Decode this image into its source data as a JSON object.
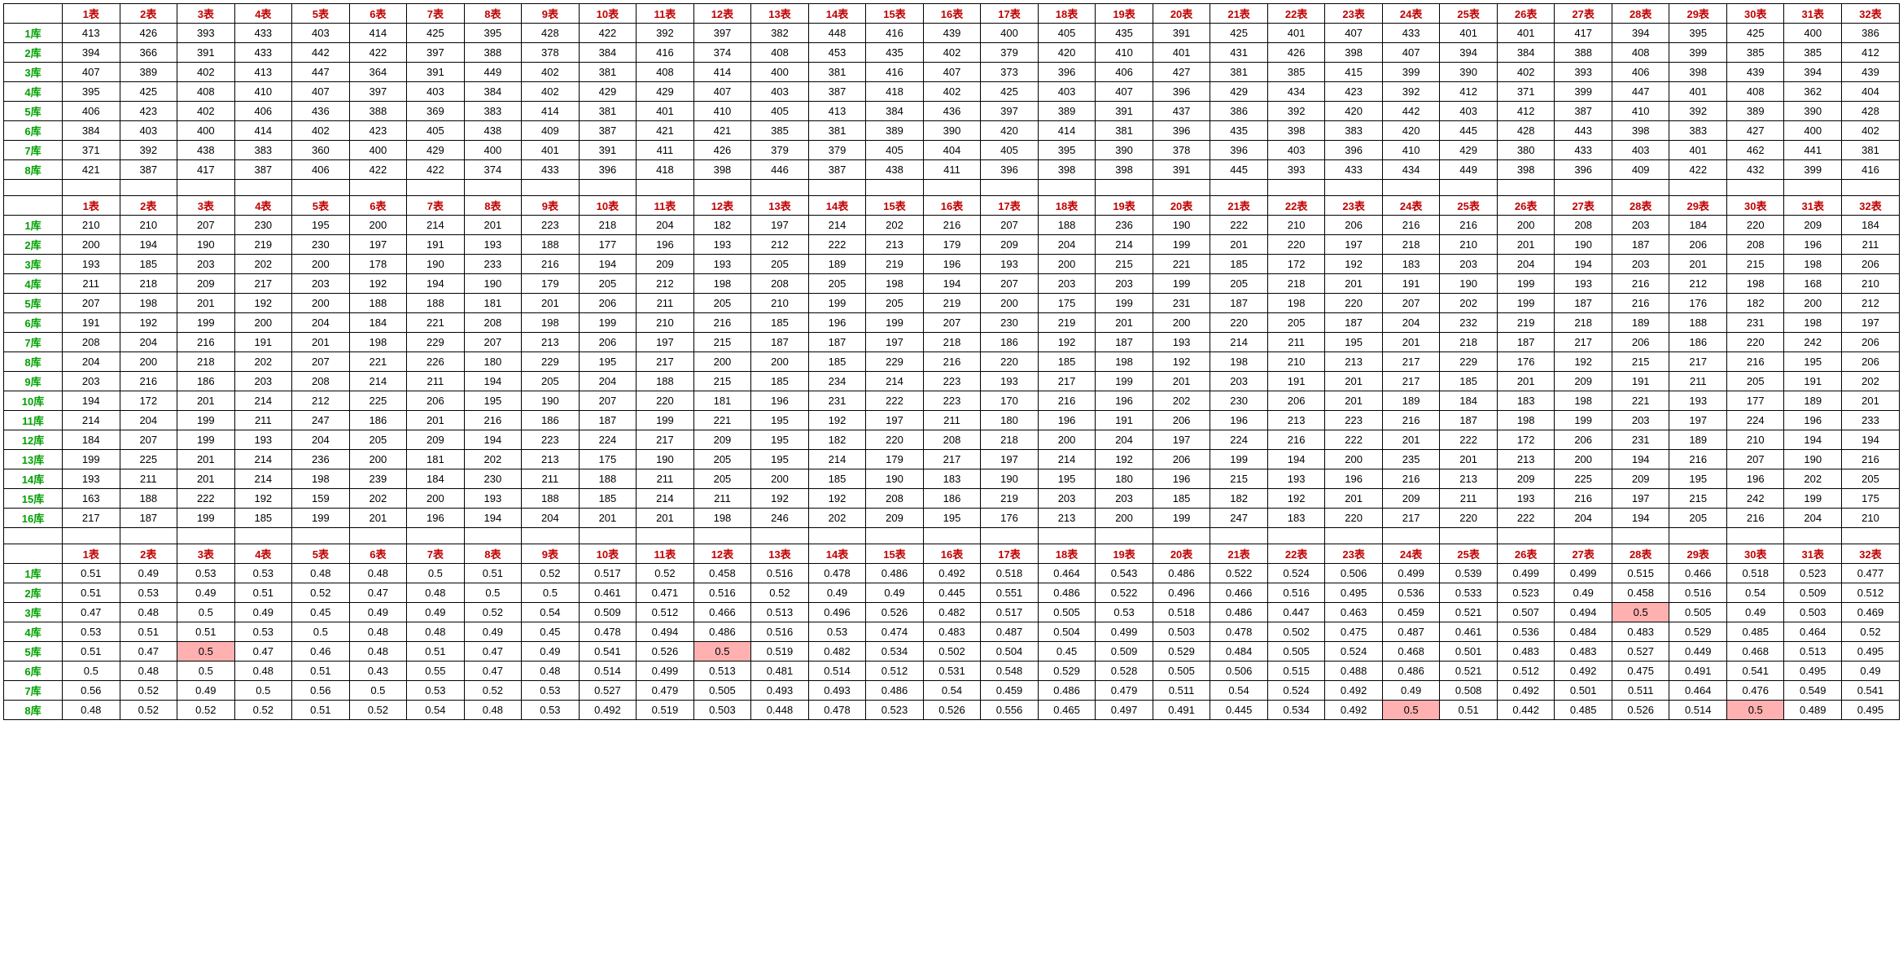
{
  "columns": [
    "1表",
    "2表",
    "3表",
    "4表",
    "5表",
    "6表",
    "7表",
    "8表",
    "9表",
    "10表",
    "11表",
    "12表",
    "13表",
    "14表",
    "15表",
    "16表",
    "17表",
    "18表",
    "19表",
    "20表",
    "21表",
    "22表",
    "23表",
    "24表",
    "25表",
    "26表",
    "27表",
    "28表",
    "29表",
    "30表",
    "31表",
    "32表"
  ],
  "colors": {
    "header": "#c00000",
    "row_header": "#00a000",
    "highlight_bg": "#ffb0b0",
    "border": "#000000"
  },
  "tables": [
    {
      "row_labels": [
        "1库",
        "2库",
        "3库",
        "4库",
        "5库",
        "6库",
        "7库",
        "8库"
      ],
      "rows": [
        [
          413,
          426,
          393,
          433,
          403,
          414,
          425,
          395,
          428,
          422,
          392,
          397,
          382,
          448,
          416,
          439,
          400,
          405,
          435,
          391,
          425,
          401,
          407,
          433,
          401,
          401,
          417,
          394,
          395,
          425,
          400,
          386
        ],
        [
          394,
          366,
          391,
          433,
          442,
          422,
          397,
          388,
          378,
          384,
          416,
          374,
          408,
          453,
          435,
          402,
          379,
          420,
          410,
          401,
          431,
          426,
          398,
          407,
          394,
          384,
          388,
          408,
          399,
          385,
          385,
          412
        ],
        [
          407,
          389,
          402,
          413,
          447,
          364,
          391,
          449,
          402,
          381,
          408,
          414,
          400,
          381,
          416,
          407,
          373,
          396,
          406,
          427,
          381,
          385,
          415,
          399,
          390,
          402,
          393,
          406,
          398,
          439,
          394,
          439
        ],
        [
          395,
          425,
          408,
          410,
          407,
          397,
          403,
          384,
          402,
          429,
          429,
          407,
          403,
          387,
          418,
          402,
          425,
          403,
          407,
          396,
          429,
          434,
          423,
          392,
          412,
          371,
          399,
          447,
          401,
          408,
          362,
          404
        ],
        [
          406,
          423,
          402,
          406,
          436,
          388,
          369,
          383,
          414,
          381,
          401,
          410,
          405,
          413,
          384,
          436,
          397,
          389,
          391,
          437,
          386,
          392,
          420,
          442,
          403,
          412,
          387,
          410,
          392,
          389,
          390,
          428
        ],
        [
          384,
          403,
          400,
          414,
          402,
          423,
          405,
          438,
          409,
          387,
          421,
          421,
          385,
          381,
          389,
          390,
          420,
          414,
          381,
          396,
          435,
          398,
          383,
          420,
          445,
          428,
          443,
          398,
          383,
          427,
          400,
          402
        ],
        [
          371,
          392,
          438,
          383,
          360,
          400,
          429,
          400,
          401,
          391,
          411,
          426,
          379,
          379,
          405,
          404,
          405,
          395,
          390,
          378,
          396,
          403,
          396,
          410,
          429,
          380,
          433,
          403,
          401,
          462,
          441,
          381
        ],
        [
          421,
          387,
          417,
          387,
          406,
          422,
          422,
          374,
          433,
          396,
          418,
          398,
          446,
          387,
          438,
          411,
          396,
          398,
          398,
          391,
          445,
          393,
          433,
          434,
          449,
          398,
          396,
          409,
          422,
          432,
          399,
          416
        ]
      ],
      "highlights": []
    },
    {
      "row_labels": [
        "1库",
        "2库",
        "3库",
        "4库",
        "5库",
        "6库",
        "7库",
        "8库",
        "9库",
        "10库",
        "11库",
        "12库",
        "13库",
        "14库",
        "15库",
        "16库"
      ],
      "rows": [
        [
          210,
          210,
          207,
          230,
          195,
          200,
          214,
          201,
          223,
          218,
          204,
          182,
          197,
          214,
          202,
          216,
          207,
          188,
          236,
          190,
          222,
          210,
          206,
          216,
          216,
          200,
          208,
          203,
          184,
          220,
          209,
          184
        ],
        [
          200,
          194,
          190,
          219,
          230,
          197,
          191,
          193,
          188,
          177,
          196,
          193,
          212,
          222,
          213,
          179,
          209,
          204,
          214,
          199,
          201,
          220,
          197,
          218,
          210,
          201,
          190,
          187,
          206,
          208,
          196,
          211
        ],
        [
          193,
          185,
          203,
          202,
          200,
          178,
          190,
          233,
          216,
          194,
          209,
          193,
          205,
          189,
          219,
          196,
          193,
          200,
          215,
          221,
          185,
          172,
          192,
          183,
          203,
          204,
          194,
          203,
          201,
          215,
          198,
          206
        ],
        [
          211,
          218,
          209,
          217,
          203,
          192,
          194,
          190,
          179,
          205,
          212,
          198,
          208,
          205,
          198,
          194,
          207,
          203,
          203,
          199,
          205,
          218,
          201,
          191,
          190,
          199,
          193,
          216,
          212,
          198,
          168,
          210
        ],
        [
          207,
          198,
          201,
          192,
          200,
          188,
          188,
          181,
          201,
          206,
          211,
          205,
          210,
          199,
          205,
          219,
          200,
          175,
          199,
          231,
          187,
          198,
          220,
          207,
          202,
          199,
          187,
          216,
          176,
          182,
          200,
          212
        ],
        [
          191,
          192,
          199,
          200,
          204,
          184,
          221,
          208,
          198,
          199,
          210,
          216,
          185,
          196,
          199,
          207,
          230,
          219,
          201,
          200,
          220,
          205,
          187,
          204,
          232,
          219,
          218,
          189,
          188,
          231,
          198,
          197
        ],
        [
          208,
          204,
          216,
          191,
          201,
          198,
          229,
          207,
          213,
          206,
          197,
          215,
          187,
          187,
          197,
          218,
          186,
          192,
          187,
          193,
          214,
          211,
          195,
          201,
          218,
          187,
          217,
          206,
          186,
          220,
          242,
          206
        ],
        [
          204,
          200,
          218,
          202,
          207,
          221,
          226,
          180,
          229,
          195,
          217,
          200,
          200,
          185,
          229,
          216,
          220,
          185,
          198,
          192,
          198,
          210,
          213,
          217,
          229,
          176,
          192,
          215,
          217,
          216,
          195,
          206
        ],
        [
          203,
          216,
          186,
          203,
          208,
          214,
          211,
          194,
          205,
          204,
          188,
          215,
          185,
          234,
          214,
          223,
          193,
          217,
          199,
          201,
          203,
          191,
          201,
          217,
          185,
          201,
          209,
          191,
          211,
          205,
          191,
          202
        ],
        [
          194,
          172,
          201,
          214,
          212,
          225,
          206,
          195,
          190,
          207,
          220,
          181,
          196,
          231,
          222,
          223,
          170,
          216,
          196,
          202,
          230,
          206,
          201,
          189,
          184,
          183,
          198,
          221,
          193,
          177,
          189,
          201
        ],
        [
          214,
          204,
          199,
          211,
          247,
          186,
          201,
          216,
          186,
          187,
          199,
          221,
          195,
          192,
          197,
          211,
          180,
          196,
          191,
          206,
          196,
          213,
          223,
          216,
          187,
          198,
          199,
          203,
          197,
          224,
          196,
          233
        ],
        [
          184,
          207,
          199,
          193,
          204,
          205,
          209,
          194,
          223,
          224,
          217,
          209,
          195,
          182,
          220,
          208,
          218,
          200,
          204,
          197,
          224,
          216,
          222,
          201,
          222,
          172,
          206,
          231,
          189,
          210,
          194,
          194
        ],
        [
          199,
          225,
          201,
          214,
          236,
          200,
          181,
          202,
          213,
          175,
          190,
          205,
          195,
          214,
          179,
          217,
          197,
          214,
          192,
          206,
          199,
          194,
          200,
          235,
          201,
          213,
          200,
          194,
          216,
          207,
          190,
          216
        ],
        [
          193,
          211,
          201,
          214,
          198,
          239,
          184,
          230,
          211,
          188,
          211,
          205,
          200,
          185,
          190,
          183,
          190,
          195,
          180,
          196,
          215,
          193,
          196,
          216,
          213,
          209,
          225,
          209,
          195,
          196,
          202,
          205
        ],
        [
          163,
          188,
          222,
          192,
          159,
          202,
          200,
          193,
          188,
          185,
          214,
          211,
          192,
          192,
          208,
          186,
          219,
          203,
          203,
          185,
          182,
          192,
          201,
          209,
          211,
          193,
          216,
          197,
          215,
          242,
          199,
          175
        ],
        [
          217,
          187,
          199,
          185,
          199,
          201,
          196,
          194,
          204,
          201,
          201,
          198,
          246,
          202,
          209,
          195,
          176,
          213,
          200,
          199,
          247,
          183,
          220,
          217,
          220,
          222,
          204,
          194,
          205,
          216,
          204,
          210
        ]
      ],
      "highlights": []
    },
    {
      "row_labels": [
        "1库",
        "2库",
        "3库",
        "4库",
        "5库",
        "6库",
        "7库",
        "8库"
      ],
      "rows": [
        [
          0.51,
          0.49,
          0.53,
          0.53,
          0.48,
          0.48,
          0.5,
          0.51,
          0.52,
          0.517,
          0.52,
          0.458,
          0.516,
          0.478,
          0.486,
          0.492,
          0.518,
          0.464,
          0.543,
          0.486,
          0.522,
          0.524,
          0.506,
          0.499,
          0.539,
          0.499,
          0.499,
          0.515,
          0.466,
          0.518,
          0.523,
          0.477
        ],
        [
          0.51,
          0.53,
          0.49,
          0.51,
          0.52,
          0.47,
          0.48,
          0.5,
          0.5,
          0.461,
          0.471,
          0.516,
          0.52,
          0.49,
          0.49,
          0.445,
          0.551,
          0.486,
          0.522,
          0.496,
          0.466,
          0.516,
          0.495,
          0.536,
          0.533,
          0.523,
          0.49,
          0.458,
          0.516,
          0.54,
          0.509,
          0.512
        ],
        [
          0.47,
          0.48,
          0.5,
          0.49,
          0.45,
          0.49,
          0.49,
          0.52,
          0.54,
          0.509,
          0.512,
          0.466,
          0.513,
          0.496,
          0.526,
          0.482,
          0.517,
          0.505,
          0.53,
          0.518,
          0.486,
          0.447,
          0.463,
          0.459,
          0.521,
          0.507,
          0.494,
          0.5,
          0.505,
          0.49,
          0.503,
          0.469
        ],
        [
          0.53,
          0.51,
          0.51,
          0.53,
          0.5,
          0.48,
          0.48,
          0.49,
          0.45,
          0.478,
          0.494,
          0.486,
          0.516,
          0.53,
          0.474,
          0.483,
          0.487,
          0.504,
          0.499,
          0.503,
          0.478,
          0.502,
          0.475,
          0.487,
          0.461,
          0.536,
          0.484,
          0.483,
          0.529,
          0.485,
          0.464,
          0.52
        ],
        [
          0.51,
          0.47,
          0.5,
          0.47,
          0.46,
          0.48,
          0.51,
          0.47,
          0.49,
          0.541,
          0.526,
          0.5,
          0.519,
          0.482,
          0.534,
          0.502,
          0.504,
          0.45,
          0.509,
          0.529,
          0.484,
          0.505,
          0.524,
          0.468,
          0.501,
          0.483,
          0.483,
          0.527,
          0.449,
          0.468,
          0.513,
          0.495
        ],
        [
          0.5,
          0.48,
          0.5,
          0.48,
          0.51,
          0.43,
          0.55,
          0.47,
          0.48,
          0.514,
          0.499,
          0.513,
          0.481,
          0.514,
          0.512,
          0.531,
          0.548,
          0.529,
          0.528,
          0.505,
          0.506,
          0.515,
          0.488,
          0.486,
          0.521,
          0.512,
          0.492,
          0.475,
          0.491,
          0.541,
          0.495,
          0.49
        ],
        [
          0.56,
          0.52,
          0.49,
          0.5,
          0.56,
          0.5,
          0.53,
          0.52,
          0.53,
          0.527,
          0.479,
          0.505,
          0.493,
          0.493,
          0.486,
          0.54,
          0.459,
          0.486,
          0.479,
          0.511,
          0.54,
          0.524,
          0.492,
          0.49,
          0.508,
          0.492,
          0.501,
          0.511,
          0.464,
          0.476,
          0.549,
          0.541
        ],
        [
          0.48,
          0.52,
          0.52,
          0.52,
          0.51,
          0.52,
          0.54,
          0.48,
          0.53,
          0.492,
          0.519,
          0.503,
          0.448,
          0.478,
          0.523,
          0.526,
          0.556,
          0.465,
          0.497,
          0.491,
          0.445,
          0.534,
          0.492,
          0.5,
          0.51,
          0.442,
          0.485,
          0.526,
          0.514,
          0.5,
          0.489,
          0.495
        ]
      ],
      "highlights": [
        {
          "r": 2,
          "c": 27
        },
        {
          "r": 4,
          "c": 2
        },
        {
          "r": 4,
          "c": 11
        },
        {
          "r": 7,
          "c": 23
        },
        {
          "r": 7,
          "c": 29
        }
      ]
    }
  ]
}
